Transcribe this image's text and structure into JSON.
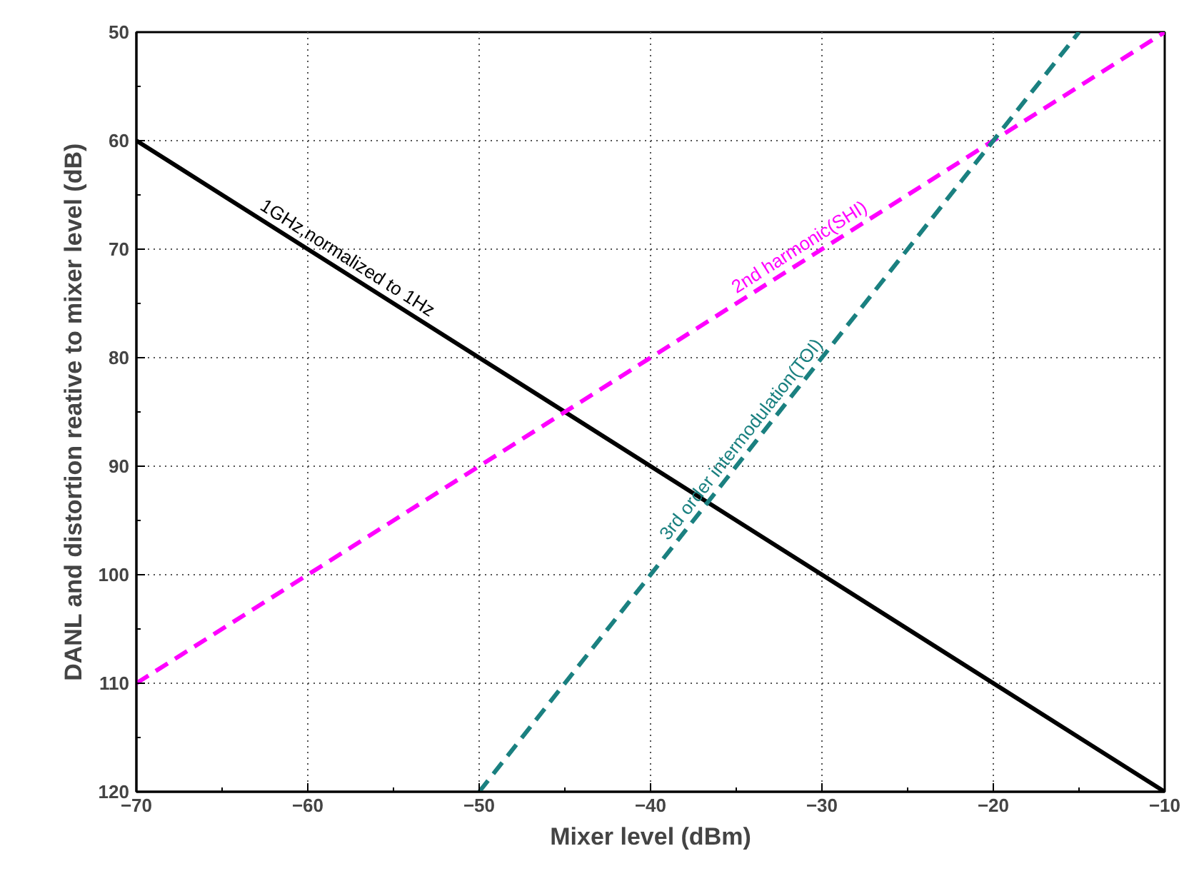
{
  "chart_data": {
    "type": "line",
    "xlabel": "Mixer level (dBm)",
    "ylabel": "DANL and distortion reative to mixer level (dB)",
    "xlim": [
      -70,
      -10
    ],
    "xticks": [
      -70,
      -60,
      -50,
      -40,
      -30,
      -20,
      -10
    ],
    "ylim": [
      120,
      50
    ],
    "yticks": [
      50,
      60,
      70,
      80,
      90,
      100,
      110,
      120
    ],
    "grid": true,
    "series": [
      {
        "name": "1GHz,normalized to 1Hz",
        "color": "#000000",
        "x": [
          -70,
          -10
        ],
        "values": [
          60,
          120
        ],
        "line_style": "solid"
      },
      {
        "name": "2nd harmonic(SHI)",
        "color": "#ff00ff",
        "x": [
          -70,
          -10
        ],
        "values": [
          110,
          50
        ],
        "line_style": "dashed"
      },
      {
        "name": "3rd order intermodulation(TOI)",
        "color": "#1a8080",
        "x": [
          -50,
          -15
        ],
        "values": [
          120,
          50
        ],
        "line_style": "dashed"
      }
    ]
  }
}
